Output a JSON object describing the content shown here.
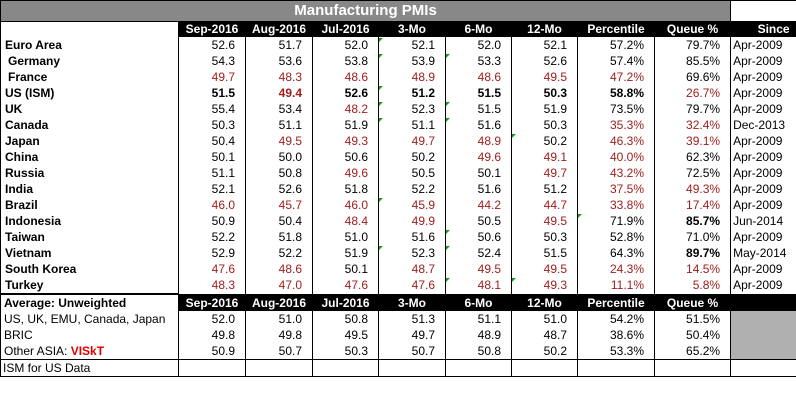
{
  "title": "Manufacturing PMIs",
  "columns": [
    "Sep-2016",
    "Aug-2016",
    "Jul-2016",
    "3-Mo",
    "6-Mo",
    "12-Mo",
    "Percentile",
    "Queue %",
    "Since"
  ],
  "rows": [
    {
      "label": "Euro Area",
      "values": [
        "52.6",
        "51.7",
        "52.0",
        "52.1",
        "52.0",
        "52.1",
        "57.2%",
        "79.7%",
        "Apr-2009"
      ]
    },
    {
      "label": "Germany",
      "values": [
        "54.3",
        "53.6",
        "53.8",
        "53.9",
        "53.3",
        "52.6",
        "57.4%",
        "85.5%",
        "Apr-2009"
      ]
    },
    {
      "label": "France",
      "values": [
        "49.7",
        "48.3",
        "48.6",
        "48.9",
        "48.6",
        "49.5",
        "47.2%",
        "69.6%",
        "Apr-2009"
      ]
    },
    {
      "label": "US (ISM)",
      "values": [
        "51.5",
        "49.4",
        "52.6",
        "51.2",
        "51.5",
        "50.3",
        "58.8%",
        "26.7%",
        "Apr-2009"
      ]
    },
    {
      "label": "UK",
      "values": [
        "55.4",
        "53.4",
        "48.2",
        "52.3",
        "51.5",
        "51.9",
        "73.5%",
        "79.7%",
        "Apr-2009"
      ]
    },
    {
      "label": "Canada",
      "values": [
        "50.3",
        "51.1",
        "51.9",
        "51.1",
        "51.6",
        "50.3",
        "35.3%",
        "32.4%",
        "Dec-2013"
      ]
    },
    {
      "label": "Japan",
      "values": [
        "50.4",
        "49.5",
        "49.3",
        "49.7",
        "48.9",
        "50.2",
        "46.3%",
        "39.1%",
        "Apr-2009"
      ]
    },
    {
      "label": "China",
      "values": [
        "50.1",
        "50.0",
        "50.6",
        "50.2",
        "49.6",
        "49.1",
        "40.0%",
        "62.3%",
        "Apr-2009"
      ]
    },
    {
      "label": "Russia",
      "values": [
        "51.1",
        "50.8",
        "49.6",
        "50.5",
        "50.1",
        "49.7",
        "43.2%",
        "72.5%",
        "Apr-2009"
      ]
    },
    {
      "label": "India",
      "values": [
        "52.1",
        "52.6",
        "51.8",
        "52.2",
        "51.6",
        "51.2",
        "37.5%",
        "49.3%",
        "Apr-2009"
      ]
    },
    {
      "label": "Brazil",
      "values": [
        "46.0",
        "45.7",
        "46.0",
        "45.9",
        "44.2",
        "44.7",
        "33.8%",
        "17.4%",
        "Apr-2009"
      ]
    },
    {
      "label": "Indonesia",
      "values": [
        "50.9",
        "50.4",
        "48.4",
        "49.9",
        "50.5",
        "49.5",
        "71.9%",
        "85.7%",
        "Jun-2014"
      ]
    },
    {
      "label": "Taiwan",
      "values": [
        "52.2",
        "51.8",
        "51.0",
        "51.6",
        "50.6",
        "50.3",
        "52.8%",
        "71.0%",
        "Apr-2009"
      ]
    },
    {
      "label": "Vietnam",
      "values": [
        "52.9",
        "52.2",
        "51.9",
        "52.3",
        "52.4",
        "51.5",
        "64.3%",
        "89.7%",
        "May-2014"
      ]
    },
    {
      "label": "South Korea",
      "values": [
        "47.6",
        "48.6",
        "50.1",
        "48.7",
        "49.5",
        "49.5",
        "24.3%",
        "14.5%",
        "Apr-2009"
      ]
    },
    {
      "label": "Turkey",
      "values": [
        "48.3",
        "47.0",
        "47.6",
        "47.6",
        "48.1",
        "49.3",
        "11.1%",
        "5.8%",
        "Apr-2009"
      ]
    }
  ],
  "average_header": {
    "label": "Average: Unweighted",
    "columns": [
      "Sep-2016",
      "Aug-2016",
      "Jul-2016",
      "3-Mo",
      "6-Mo",
      "12-Mo",
      "Percentile",
      "Queue %"
    ]
  },
  "average_rows": [
    {
      "label": "US, UK, EMU, Canada, Japan",
      "values": [
        "52.0",
        "51.0",
        "50.8",
        "51.3",
        "51.1",
        "51.0",
        "54.2%",
        "51.5%"
      ]
    },
    {
      "label": "BRIC",
      "values": [
        "49.8",
        "49.8",
        "49.5",
        "49.7",
        "48.9",
        "48.7",
        "38.6%",
        "50.4%"
      ]
    },
    {
      "label": "Other ASIA:",
      "label_highlight": "VISkT",
      "values": [
        "50.9",
        "50.7",
        "50.3",
        "50.7",
        "50.8",
        "50.2",
        "53.3%",
        "65.2%"
      ]
    }
  ],
  "footer": "ISM for US Data",
  "colors": {
    "header_bg": "#000000",
    "title_bg": "#888888",
    "below_50": "#a01e1e",
    "highlight": "#e00000",
    "flag": "#1a9a1a",
    "filler": "#b0b0b0"
  }
}
